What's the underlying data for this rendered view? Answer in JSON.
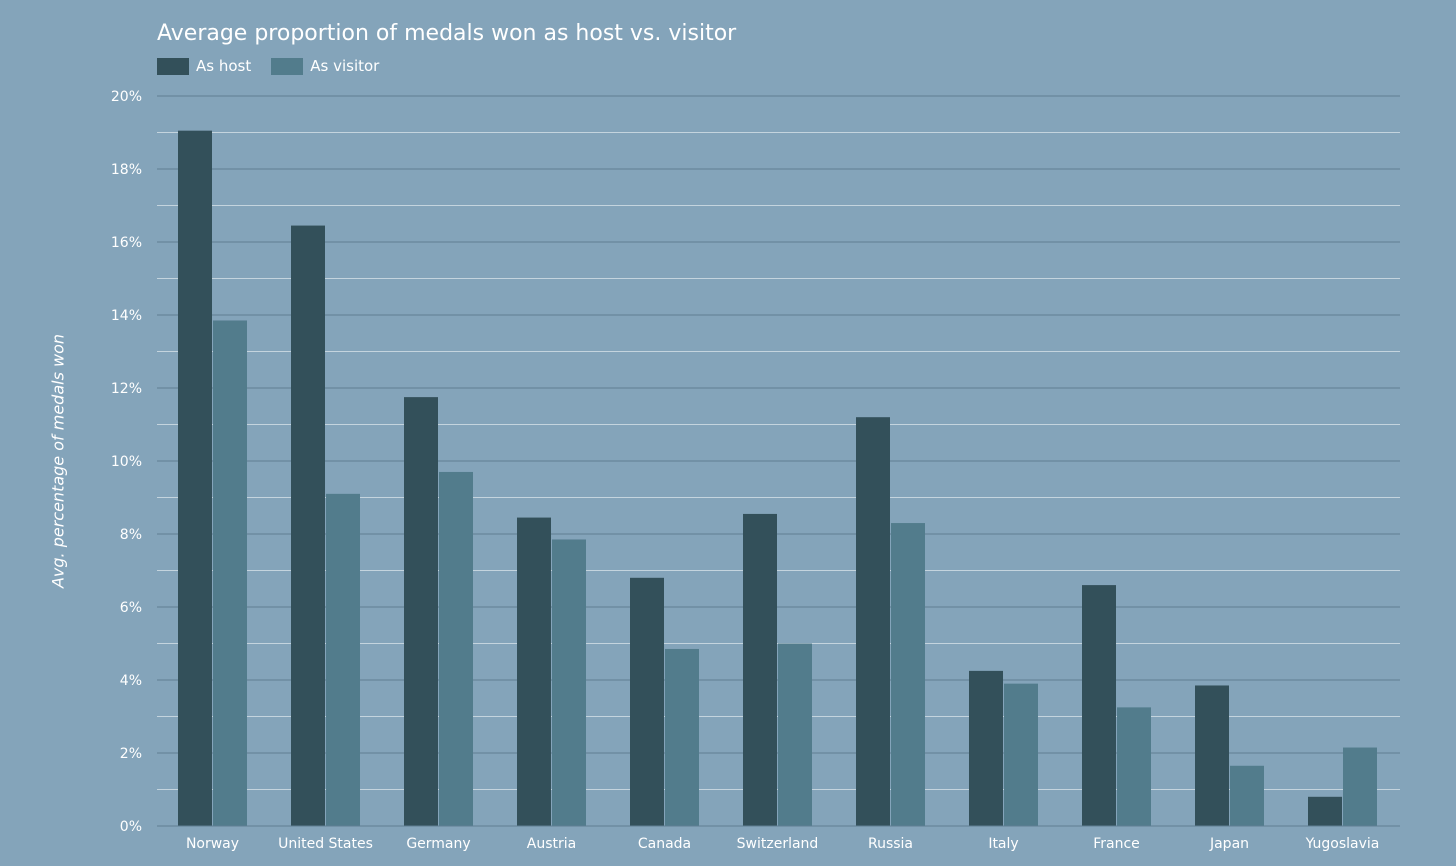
{
  "chart_data": {
    "type": "bar",
    "title": "Average proportion of medals won as host vs. visitor",
    "xlabel": "",
    "ylabel": "Avg. percentage of medals won",
    "categories": [
      "Norway",
      "United States",
      "Germany",
      "Austria",
      "Canada",
      "Switzerland",
      "Russia",
      "Italy",
      "France",
      "Japan",
      "Yugoslavia"
    ],
    "series": [
      {
        "name": "As host",
        "color": "#33505a",
        "values": [
          19.05,
          16.45,
          11.75,
          8.45,
          6.8,
          8.55,
          11.2,
          4.25,
          6.6,
          3.85,
          0.8
        ]
      },
      {
        "name": "As visitor",
        "color": "#527c8c",
        "values": [
          13.85,
          9.1,
          9.7,
          7.85,
          4.85,
          5.0,
          8.3,
          3.9,
          3.25,
          1.65,
          2.15
        ]
      }
    ],
    "ylim": [
      0,
      20
    ],
    "yticks": [
      0,
      2,
      4,
      6,
      8,
      10,
      12,
      14,
      16,
      18,
      20
    ],
    "ytick_labels": [
      "0%",
      "2%",
      "4%",
      "6%",
      "8%",
      "10%",
      "12%",
      "14%",
      "16%",
      "18%",
      "20%"
    ],
    "grid": true,
    "legend": "top-left",
    "background_color": "#84a4ba",
    "major_grid_color": "#5f7e93",
    "minor_grid_color": "#c4d4de"
  }
}
